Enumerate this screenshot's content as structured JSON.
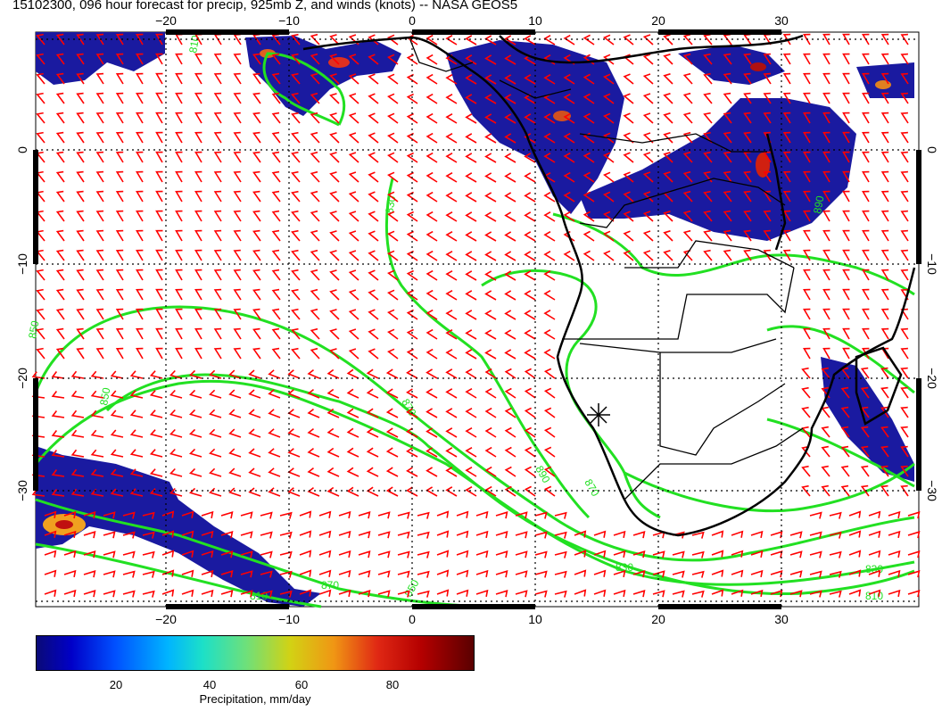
{
  "title": "15102300, 096 hour forecast for precip, 925mb Z, and winds (knots) -- NASA GEOS5",
  "map": {
    "lon_ticks_top": [
      "−20",
      "−10",
      "0",
      "10",
      "20",
      "30"
    ],
    "lon_ticks_bottom": [
      "−20",
      "−10",
      "0",
      "10",
      "20",
      "30"
    ],
    "lat_ticks_left": [
      "0",
      "−10",
      "−20",
      "−30"
    ],
    "lat_ticks_right": [
      "0",
      "−10",
      "−20",
      "−30"
    ],
    "contour_labels": [
      "810",
      "830",
      "850",
      "870",
      "890",
      "870",
      "850",
      "830",
      "810",
      "890",
      "870",
      "850",
      "830",
      "810"
    ],
    "colors": {
      "precip_low": "#0a0a8c",
      "precip_high": "#5a0000",
      "contours": "#22e022",
      "wind_barbs": "#ff0000",
      "coastlines": "#000000"
    }
  },
  "colorbar": {
    "ticks": [
      "20",
      "40",
      "60",
      "80"
    ],
    "label": "Precipitation, mm/day"
  }
}
